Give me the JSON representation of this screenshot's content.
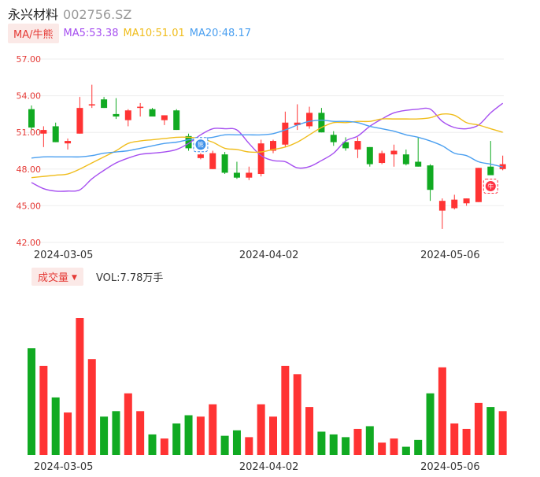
{
  "header": {
    "name": "永兴材料",
    "code": "002756.SZ"
  },
  "ma_legend": {
    "toggle_label": "MA/牛熊",
    "items": [
      {
        "label": "MA5:53.38",
        "color": "#a64ff0"
      },
      {
        "label": "MA10:51.01",
        "color": "#f0bd1c"
      },
      {
        "label": "MA20:48.17",
        "color": "#4a9ff0"
      }
    ]
  },
  "volume_legend": {
    "toggle_label": "成交量",
    "value_text": "VOL:7.78万手"
  },
  "icons": {
    "bull_marker": "牛",
    "bear_marker": "熊"
  },
  "colors": {
    "up": "#ff3333",
    "down": "#11aa22",
    "grid": "#eeeeee",
    "axis_text": "#e53935"
  },
  "chart_data": {
    "type": "candlestick",
    "price_axis": {
      "ylim": [
        42,
        57
      ],
      "ticks": [
        "42.00",
        "45.00",
        "48.00",
        "51.00",
        "54.00",
        "57.00"
      ]
    },
    "x_ticks": [
      {
        "index": 2,
        "label": "2024-03-05"
      },
      {
        "index": 19,
        "label": "2024-04-02"
      },
      {
        "index": 34,
        "label": "2024-05-06"
      }
    ],
    "candles": [
      {
        "o": 52.9,
        "h": 53.2,
        "l": 51.2,
        "c": 51.4
      },
      {
        "o": 50.9,
        "h": 51.5,
        "l": 49.8,
        "c": 51.2
      },
      {
        "o": 51.5,
        "h": 51.8,
        "l": 50.2,
        "c": 50.2
      },
      {
        "o": 50.1,
        "h": 50.5,
        "l": 49.6,
        "c": 50.3
      },
      {
        "o": 50.9,
        "h": 53.9,
        "l": 50.9,
        "c": 53.0
      },
      {
        "o": 53.2,
        "h": 54.9,
        "l": 53.0,
        "c": 53.3
      },
      {
        "o": 53.7,
        "h": 53.9,
        "l": 53.0,
        "c": 53.0
      },
      {
        "o": 52.5,
        "h": 53.8,
        "l": 52.1,
        "c": 52.3
      },
      {
        "o": 52.0,
        "h": 52.9,
        "l": 51.5,
        "c": 52.8
      },
      {
        "o": 53.0,
        "h": 53.4,
        "l": 52.3,
        "c": 53.1
      },
      {
        "o": 52.9,
        "h": 53.0,
        "l": 52.3,
        "c": 52.3
      },
      {
        "o": 52.0,
        "h": 52.4,
        "l": 51.6,
        "c": 52.4
      },
      {
        "o": 52.8,
        "h": 52.9,
        "l": 51.2,
        "c": 51.2
      },
      {
        "o": 50.7,
        "h": 50.9,
        "l": 49.5,
        "c": 49.7
      },
      {
        "o": 48.9,
        "h": 49.3,
        "l": 48.8,
        "c": 49.2
      },
      {
        "o": 48.0,
        "h": 49.5,
        "l": 48.0,
        "c": 49.3
      },
      {
        "o": 49.2,
        "h": 49.4,
        "l": 47.6,
        "c": 47.7
      },
      {
        "o": 47.7,
        "h": 48.6,
        "l": 47.2,
        "c": 47.3
      },
      {
        "o": 47.3,
        "h": 48.2,
        "l": 47.1,
        "c": 47.7
      },
      {
        "o": 47.6,
        "h": 50.4,
        "l": 47.4,
        "c": 50.1
      },
      {
        "o": 49.5,
        "h": 50.4,
        "l": 49.3,
        "c": 50.3
      },
      {
        "o": 50.0,
        "h": 52.7,
        "l": 49.8,
        "c": 51.8
      },
      {
        "o": 51.6,
        "h": 53.3,
        "l": 51.2,
        "c": 51.8
      },
      {
        "o": 51.5,
        "h": 53.1,
        "l": 51.3,
        "c": 52.6
      },
      {
        "o": 52.6,
        "h": 53.0,
        "l": 51.0,
        "c": 51.0
      },
      {
        "o": 50.8,
        "h": 51.1,
        "l": 49.9,
        "c": 50.2
      },
      {
        "o": 50.2,
        "h": 50.6,
        "l": 49.5,
        "c": 49.7
      },
      {
        "o": 49.6,
        "h": 50.6,
        "l": 48.9,
        "c": 50.3
      },
      {
        "o": 49.8,
        "h": 49.8,
        "l": 48.2,
        "c": 48.4
      },
      {
        "o": 48.5,
        "h": 49.5,
        "l": 48.4,
        "c": 49.3
      },
      {
        "o": 49.2,
        "h": 50.0,
        "l": 48.2,
        "c": 49.5
      },
      {
        "o": 49.2,
        "h": 49.6,
        "l": 48.3,
        "c": 48.4
      },
      {
        "o": 48.6,
        "h": 50.6,
        "l": 48.2,
        "c": 48.2
      },
      {
        "o": 48.3,
        "h": 48.4,
        "l": 45.4,
        "c": 46.3
      },
      {
        "o": 44.6,
        "h": 45.6,
        "l": 43.1,
        "c": 45.4
      },
      {
        "o": 44.8,
        "h": 45.9,
        "l": 44.7,
        "c": 45.5
      },
      {
        "o": 45.2,
        "h": 45.6,
        "l": 45.0,
        "c": 45.6
      },
      {
        "o": 45.3,
        "h": 48.1,
        "l": 45.3,
        "c": 48.1
      },
      {
        "o": 48.2,
        "h": 50.3,
        "l": 47.6,
        "c": 47.5
      },
      {
        "o": 48.0,
        "h": 49.1,
        "l": 47.9,
        "c": 48.4
      }
    ],
    "volume_relative": [
      0.78,
      0.65,
      0.42,
      0.31,
      1.0,
      0.7,
      0.28,
      0.32,
      0.45,
      0.32,
      0.15,
      0.12,
      0.23,
      0.29,
      0.28,
      0.37,
      0.14,
      0.18,
      0.13,
      0.37,
      0.28,
      0.65,
      0.59,
      0.35,
      0.17,
      0.15,
      0.13,
      0.19,
      0.21,
      0.09,
      0.12,
      0.06,
      0.11,
      0.45,
      0.64,
      0.23,
      0.19,
      0.38,
      0.35,
      0.32
    ],
    "series": [
      {
        "name": "MA5",
        "color": "#a64ff0",
        "values": [
          46.9,
          46.4,
          46.2,
          46.2,
          46.3,
          47.2,
          47.9,
          48.5,
          48.9,
          49.2,
          49.3,
          49.4,
          49.6,
          50.1,
          50.8,
          51.3,
          51.3,
          51.2,
          50.1,
          49.1,
          48.7,
          48.6,
          48.1,
          48.2,
          48.7,
          49.3,
          50.3,
          50.7,
          51.5,
          52.1,
          52.6,
          52.8,
          52.9,
          52.9,
          51.9,
          51.4,
          51.3,
          51.6,
          52.6,
          53.38
        ]
      },
      {
        "name": "MA10",
        "color": "#f0bd1c",
        "values": [
          47.3,
          47.4,
          47.5,
          47.6,
          48.0,
          48.5,
          49.0,
          49.5,
          50.1,
          50.3,
          50.4,
          50.5,
          50.6,
          50.6,
          50.5,
          50.2,
          49.7,
          49.6,
          49.4,
          49.4,
          49.6,
          49.8,
          50.2,
          50.8,
          51.4,
          51.8,
          51.8,
          51.9,
          51.9,
          52.1,
          52.1,
          52.1,
          52.1,
          52.2,
          52.5,
          52.4,
          51.8,
          51.6,
          51.3,
          51.01
        ]
      },
      {
        "name": "MA20",
        "color": "#4a9ff0",
        "values": [
          48.9,
          49.0,
          49.0,
          49.0,
          49.0,
          49.1,
          49.3,
          49.4,
          49.5,
          49.7,
          49.9,
          50.1,
          50.2,
          50.4,
          50.5,
          50.6,
          50.8,
          50.8,
          50.8,
          50.8,
          50.9,
          51.2,
          51.6,
          51.9,
          52.0,
          51.9,
          51.9,
          51.8,
          51.5,
          51.3,
          51.1,
          50.8,
          50.6,
          50.3,
          49.9,
          49.3,
          49.1,
          48.6,
          48.4,
          48.17
        ]
      }
    ]
  }
}
